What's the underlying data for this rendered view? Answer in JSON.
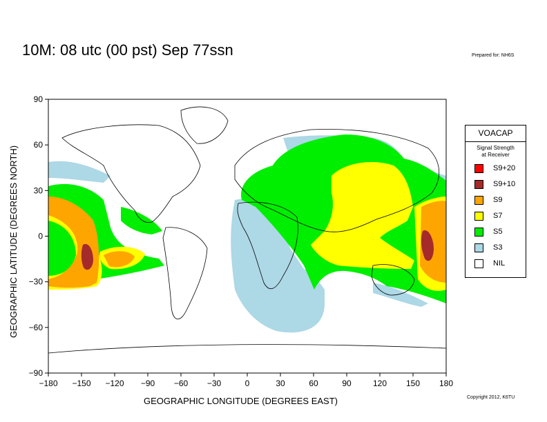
{
  "title": "10M:  08 utc (00 pst) Sep 77ssn",
  "prepared": "Prepared for: NH6S",
  "copyright": "Copyright 2012, K6TU",
  "x_axis": {
    "label": "GEOGRAPHIC LONGITUDE (DEGREES EAST)",
    "ticks": [
      "−180",
      "−150",
      "−120",
      "−90",
      "−60",
      "−30",
      "0",
      "30",
      "60",
      "90",
      "120",
      "150",
      "180"
    ],
    "range": [
      -180,
      180
    ]
  },
  "y_axis": {
    "label": "GEOGRAPHIC LATITUDE (DEGREES NORTH)",
    "ticks": [
      "90",
      "60",
      "30",
      "0",
      "−30",
      "−60",
      "−90"
    ],
    "range": [
      -90,
      90
    ]
  },
  "legend": {
    "title": "VOACAP",
    "subtitle_line1": "Signal Strength",
    "subtitle_line2": "at Receiver",
    "placement": "right",
    "items": [
      {
        "label": "S9+20",
        "color": "#ff0000"
      },
      {
        "label": "S9+10",
        "color": "#a52a2a"
      },
      {
        "label": "S9",
        "color": "#ffa500"
      },
      {
        "label": "S7",
        "color": "#ffff00"
      },
      {
        "label": "S5",
        "color": "#00ee00"
      },
      {
        "label": "S3",
        "color": "#add8e6"
      },
      {
        "label": "NIL",
        "color": "#ffffff"
      }
    ]
  }
}
